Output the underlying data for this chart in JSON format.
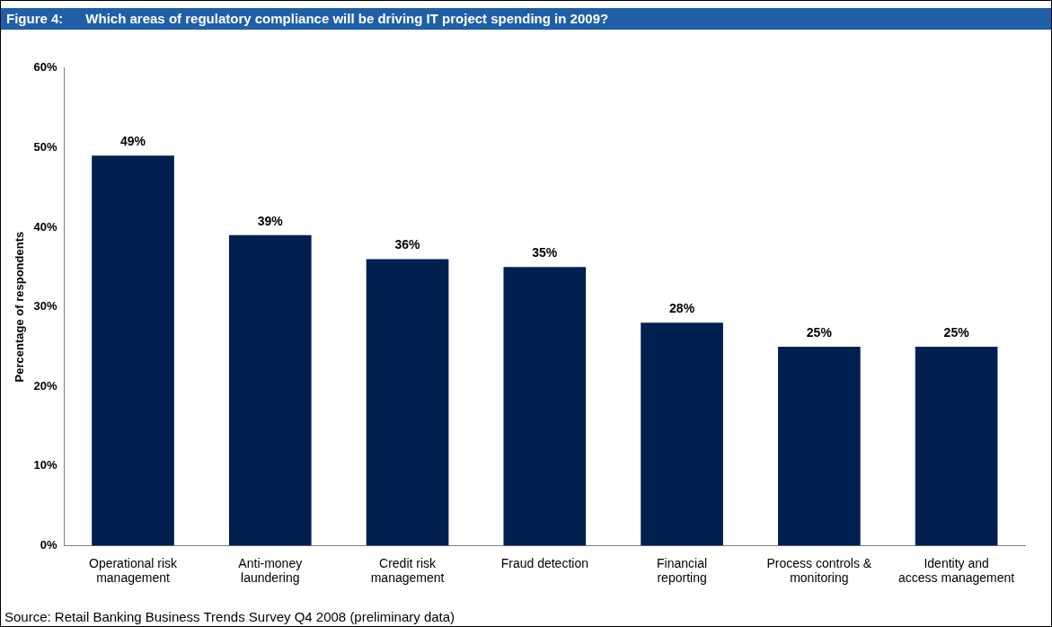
{
  "chart_data": {
    "type": "bar",
    "title": "Figure 4:      Which areas of regulatory compliance will be driving IT project spending in 2009?",
    "ylabel": "Percentage of respondents",
    "categories": [
      "Operational risk management",
      "Anti-money laundering",
      "Credit risk management",
      "Fraud detection",
      "Financial reporting",
      "Process controls & monitoring",
      "Identity and access management"
    ],
    "values": [
      49,
      39,
      36,
      35,
      28,
      25,
      25
    ],
    "value_labels": [
      "49%",
      "39%",
      "36%",
      "35%",
      "28%",
      "25%",
      "25%"
    ],
    "color": "#002050",
    "ylim": [
      0,
      60
    ],
    "yticks": [
      {
        "value": 0,
        "label": "0%"
      },
      {
        "value": 10,
        "label": "10%"
      },
      {
        "value": 20,
        "label": "20%"
      },
      {
        "value": 30,
        "label": "30%"
      },
      {
        "value": 40,
        "label": "40%"
      },
      {
        "value": 50,
        "label": "50%"
      },
      {
        "value": 60,
        "label": "60%"
      }
    ],
    "grid": false,
    "legend": false,
    "annotations": [
      "Source: Retail Banking Business Trends Survey Q4 2008 (preliminary data)"
    ]
  }
}
